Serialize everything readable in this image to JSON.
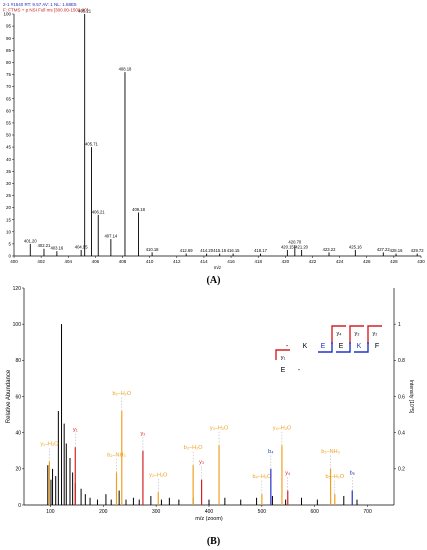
{
  "panels": {
    "a_label": "(A)",
    "b_label": "(B)"
  },
  "colors": {
    "red": "#d62222",
    "orange": "#f0a020",
    "blue": "#2233cc",
    "black": "#000000",
    "grey": "#888888",
    "header_blue": "#1f2fbf",
    "header_red": "#cc2222"
  },
  "chart_data": [
    {
      "type": "bar",
      "header_line1": "2-1 #1540  RT: 9.57  AV: 1  NL: 1.68E5",
      "header_line2": "F: FTMS + p NSI Full ms [300.00-1500.00]",
      "xlabel": "m/z",
      "ylabel": "",
      "xlim": [
        400,
        430
      ],
      "ylim": [
        0,
        100
      ],
      "x_ticks": [
        400,
        402,
        404,
        406,
        408,
        410,
        412,
        414,
        416,
        418,
        420,
        422,
        424,
        426,
        428,
        430
      ],
      "y_ticks": [
        0,
        5,
        10,
        15,
        20,
        25,
        30,
        35,
        40,
        45,
        50,
        55,
        60,
        65,
        70,
        75,
        80,
        85,
        90,
        95,
        100
      ],
      "peaks": [
        {
          "x": 401.2,
          "y": 5,
          "label": "401.20"
        },
        {
          "x": 402.21,
          "y": 3,
          "label": "402.21"
        },
        {
          "x": 403.16,
          "y": 2,
          "label": "403.16"
        },
        {
          "x": 404.95,
          "y": 2.5,
          "label": "404.95"
        },
        {
          "x": 405.21,
          "y": 100,
          "label": "405.21"
        },
        {
          "x": 405.71,
          "y": 45,
          "label": "405.71"
        },
        {
          "x": 406.21,
          "y": 17,
          "label": "406.21"
        },
        {
          "x": 407.14,
          "y": 7,
          "label": "407.14"
        },
        {
          "x": 408.18,
          "y": 76,
          "label": "408.18"
        },
        {
          "x": 409.18,
          "y": 18,
          "label": "409.18"
        },
        {
          "x": 410.18,
          "y": 1.5,
          "label": "410.18"
        },
        {
          "x": 412.69,
          "y": 1,
          "label": "412.69"
        },
        {
          "x": 414.2,
          "y": 1,
          "label": "414.20"
        },
        {
          "x": 415.16,
          "y": 1,
          "label": "415.16"
        },
        {
          "x": 416.15,
          "y": 1,
          "label": "416.15"
        },
        {
          "x": 418.17,
          "y": 1,
          "label": "418.17"
        },
        {
          "x": 420.15,
          "y": 2.5,
          "label": "420.15"
        },
        {
          "x": 420.7,
          "y": 4.5,
          "label": "420.70"
        },
        {
          "x": 421.2,
          "y": 2.5,
          "label": "421.20"
        },
        {
          "x": 423.22,
          "y": 1.5,
          "label": "423.22"
        },
        {
          "x": 425.16,
          "y": 2.5,
          "label": "425.16"
        },
        {
          "x": 427.22,
          "y": 1.5,
          "label": "427.22"
        },
        {
          "x": 428.16,
          "y": 1,
          "label": "428.16"
        },
        {
          "x": 429.72,
          "y": 1,
          "label": "429.72"
        }
      ]
    },
    {
      "type": "bar",
      "xlabel": "m/z (zoom)",
      "ylabel": "Relative Abundance",
      "ylabel_right": "Intensity [10^5]",
      "xlim": [
        50,
        750
      ],
      "ylim": [
        0,
        120
      ],
      "ylim_right": [
        0,
        1.2
      ],
      "x_ticks": [
        100,
        200,
        300,
        400,
        500,
        600,
        700
      ],
      "y_ticks": [
        0,
        20,
        40,
        60,
        80,
        100,
        120
      ],
      "y_ticks_right": [
        "0.2",
        "0.4",
        "0.6",
        "0.8",
        "1"
      ],
      "peaks": [
        {
          "x": 95,
          "y": 22
        },
        {
          "x": 101,
          "y": 14
        },
        {
          "x": 104,
          "y": 20
        },
        {
          "x": 110,
          "y": 16
        },
        {
          "x": 115,
          "y": 52
        },
        {
          "x": 121,
          "y": 100
        },
        {
          "x": 126,
          "y": 45
        },
        {
          "x": 130,
          "y": 34
        },
        {
          "x": 137,
          "y": 26
        },
        {
          "x": 142,
          "y": 18
        },
        {
          "x": 147,
          "y": 12
        },
        {
          "x": 158,
          "y": 9
        },
        {
          "x": 166,
          "y": 6
        },
        {
          "x": 175,
          "y": 4
        },
        {
          "x": 189,
          "y": 3
        },
        {
          "x": 205,
          "y": 6
        },
        {
          "x": 215,
          "y": 3
        },
        {
          "x": 230,
          "y": 8
        },
        {
          "x": 243,
          "y": 3
        },
        {
          "x": 257,
          "y": 4
        },
        {
          "x": 268,
          "y": 3
        },
        {
          "x": 290,
          "y": 5
        },
        {
          "x": 310,
          "y": 3
        },
        {
          "x": 325,
          "y": 4
        },
        {
          "x": 343,
          "y": 3
        },
        {
          "x": 370,
          "y": 4
        },
        {
          "x": 400,
          "y": 3
        },
        {
          "x": 430,
          "y": 4
        },
        {
          "x": 460,
          "y": 3
        },
        {
          "x": 490,
          "y": 4
        },
        {
          "x": 520,
          "y": 5
        },
        {
          "x": 545,
          "y": 3
        },
        {
          "x": 575,
          "y": 4
        },
        {
          "x": 605,
          "y": 3
        },
        {
          "x": 630,
          "y": 4
        },
        {
          "x": 655,
          "y": 5
        },
        {
          "x": 680,
          "y": 3
        }
      ],
      "annotations": [
        {
          "x": 98,
          "y": 24,
          "label": "y₁–H₂O",
          "color": "orange"
        },
        {
          "x": 147,
          "y": 32,
          "label": "y₁",
          "color": "red"
        },
        {
          "x": 225,
          "y": 18,
          "label": "b₂–NH₃",
          "color": "orange"
        },
        {
          "x": 235,
          "y": 52,
          "label": "b₂–H₂O",
          "color": "orange"
        },
        {
          "x": 275,
          "y": 30,
          "label": "y₂",
          "color": "red"
        },
        {
          "x": 304,
          "y": 7,
          "label": "y₂–H₂O",
          "color": "orange"
        },
        {
          "x": 370,
          "y": 22,
          "label": "b₃–H₂O",
          "color": "orange"
        },
        {
          "x": 386,
          "y": 14,
          "label": "y₃",
          "color": "red"
        },
        {
          "x": 419,
          "y": 33,
          "label": "y₃–H₂O",
          "color": "orange"
        },
        {
          "x": 500,
          "y": 6,
          "label": "b₄–H₂O",
          "color": "orange"
        },
        {
          "x": 517,
          "y": 20,
          "label": "b₄",
          "color": "blue"
        },
        {
          "x": 538,
          "y": 33,
          "label": "y₄–H₂O",
          "color": "orange"
        },
        {
          "x": 549,
          "y": 8,
          "label": "y₄",
          "color": "red"
        },
        {
          "x": 630,
          "y": 20,
          "label": "b₅–NH₃",
          "color": "orange"
        },
        {
          "x": 638,
          "y": 6,
          "label": "b₅–H₂O",
          "color": "orange"
        },
        {
          "x": 671,
          "y": 8,
          "label": "b₅",
          "color": "blue"
        }
      ],
      "sequence": [
        "-",
        "K",
        "E",
        "E",
        "K",
        "F"
      ],
      "fragment_labels": [
        "y₄",
        "y₃",
        "y₂",
        "y₁"
      ],
      "sequence_row2": [
        "E",
        "-"
      ]
    }
  ]
}
